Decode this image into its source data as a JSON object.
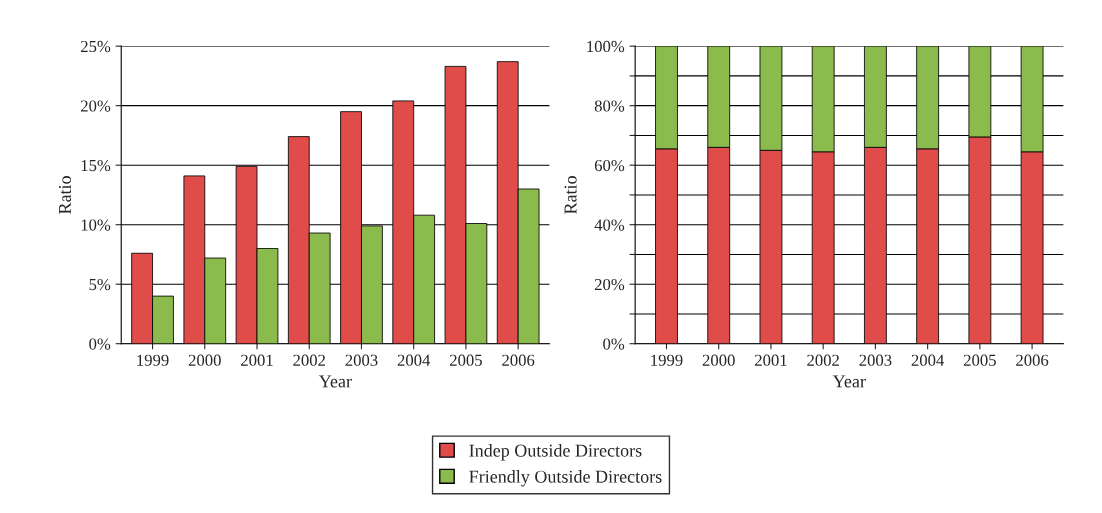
{
  "chart_data": [
    {
      "type": "bar",
      "xlabel": "Year",
      "ylabel": "Ratio",
      "categories": [
        "1999",
        "2000",
        "2001",
        "2002",
        "2003",
        "2004",
        "2005",
        "2006"
      ],
      "series": [
        {
          "name": "Indep Outside Directors",
          "color": "#e04c4a",
          "values": [
            7.6,
            14.1,
            14.9,
            17.4,
            19.5,
            20.4,
            23.3,
            23.7
          ]
        },
        {
          "name": "Friendly Outside Directors",
          "color": "#8bbb4c",
          "values": [
            4.0,
            7.2,
            8.0,
            9.3,
            9.9,
            10.8,
            10.1,
            13.0
          ]
        }
      ],
      "ylim": [
        0,
        25
      ],
      "yticks": [
        {
          "value": 0,
          "label": "0%"
        },
        {
          "value": 5,
          "label": "5%"
        },
        {
          "value": 10,
          "label": "10%"
        },
        {
          "value": 15,
          "label": "15%"
        },
        {
          "value": 20,
          "label": "20%"
        },
        {
          "value": 25,
          "label": "25%"
        }
      ],
      "grid": "y",
      "legend": "bottom"
    },
    {
      "type": "bar",
      "stacked": true,
      "xlabel": "Year",
      "ylabel": "Ratio",
      "categories": [
        "1999",
        "2000",
        "2001",
        "2002",
        "2003",
        "2004",
        "2005",
        "2006"
      ],
      "series": [
        {
          "color": "#e04c4a",
          "values": [
            65.5,
            66,
            65,
            64.5,
            66,
            65.5,
            69.5,
            64.5
          ]
        },
        {
          "color": "#8bbb4c",
          "values": [
            34.5,
            34,
            35,
            35.5,
            34,
            34.5,
            30.5,
            35.5
          ]
        }
      ],
      "ylim": [
        0,
        100
      ],
      "yticks": [
        {
          "value": 0,
          "label": "0%"
        },
        {
          "value": 10,
          "label": null
        },
        {
          "value": 20,
          "label": "20%"
        },
        {
          "value": 30,
          "label": null
        },
        {
          "value": 40,
          "label": "40%"
        },
        {
          "value": 50,
          "label": null
        },
        {
          "value": 60,
          "label": "60%"
        },
        {
          "value": 70,
          "label": null
        },
        {
          "value": 80,
          "label": "80%"
        },
        {
          "value": 90,
          "label": null
        },
        {
          "value": 100,
          "label": "100%"
        }
      ],
      "grid": "y"
    }
  ]
}
